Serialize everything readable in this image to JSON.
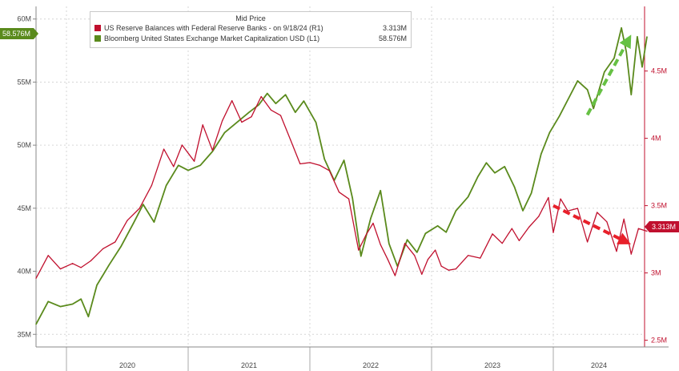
{
  "chart_data": {
    "type": "line",
    "title": "",
    "legend": {
      "title": "Mid Price",
      "placement": "top-left",
      "entries": [
        {
          "name": "US Reserve Balances with Federal Reserve Banks - on 9/18/24 (R1)",
          "last": "3.313M"
        },
        {
          "name": "Bloomberg United States Exchange Market Capitalization USD (L1)",
          "last": "58.576M"
        }
      ]
    },
    "x_axis": {
      "labels": [
        "2020",
        "2021",
        "2022",
        "2023",
        "2024"
      ],
      "range": [
        2019.75,
        2024.75
      ]
    },
    "y_left": {
      "ticks": [
        35,
        40,
        45,
        50,
        55,
        60
      ],
      "tick_labels": [
        "35M",
        "40M",
        "45M",
        "50M",
        "55M",
        "60M"
      ],
      "range": [
        34,
        61
      ]
    },
    "y_right": {
      "ticks": [
        2.5,
        3,
        3.5,
        4,
        4.5
      ],
      "tick_labels": [
        "2.5M",
        "3M",
        "3.5M",
        "4M",
        "4.5M"
      ],
      "range": [
        2.45,
        4.98
      ]
    },
    "grid": true,
    "last_value_labels": {
      "left": "58.576M",
      "right": "3.313M"
    },
    "series": [
      {
        "name": "Bloomberg United States Exchange Market Capitalization USD (L1)",
        "axis": "left",
        "color": "#5a8a1c",
        "points": [
          [
            2019.75,
            35.8
          ],
          [
            2019.85,
            37.6
          ],
          [
            2019.95,
            37.2
          ],
          [
            2020.05,
            37.4
          ],
          [
            2020.12,
            37.8
          ],
          [
            2020.18,
            36.4
          ],
          [
            2020.25,
            38.9
          ],
          [
            2020.35,
            40.5
          ],
          [
            2020.45,
            42.0
          ],
          [
            2020.55,
            43.8
          ],
          [
            2020.63,
            45.3
          ],
          [
            2020.72,
            43.9
          ],
          [
            2020.82,
            46.8
          ],
          [
            2020.92,
            48.4
          ],
          [
            2021.0,
            48.0
          ],
          [
            2021.1,
            48.4
          ],
          [
            2021.2,
            49.5
          ],
          [
            2021.3,
            51.0
          ],
          [
            2021.4,
            51.8
          ],
          [
            2021.5,
            52.6
          ],
          [
            2021.58,
            53.2
          ],
          [
            2021.65,
            54.1
          ],
          [
            2021.72,
            53.3
          ],
          [
            2021.8,
            54.0
          ],
          [
            2021.88,
            52.6
          ],
          [
            2021.95,
            53.5
          ],
          [
            2022.05,
            51.8
          ],
          [
            2022.12,
            48.9
          ],
          [
            2022.2,
            47.2
          ],
          [
            2022.28,
            48.8
          ],
          [
            2022.35,
            45.8
          ],
          [
            2022.42,
            41.2
          ],
          [
            2022.5,
            44.2
          ],
          [
            2022.58,
            46.4
          ],
          [
            2022.65,
            42.2
          ],
          [
            2022.72,
            40.4
          ],
          [
            2022.8,
            42.5
          ],
          [
            2022.88,
            41.5
          ],
          [
            2022.95,
            43.0
          ],
          [
            2023.05,
            43.6
          ],
          [
            2023.12,
            43.1
          ],
          [
            2023.2,
            44.8
          ],
          [
            2023.3,
            45.9
          ],
          [
            2023.38,
            47.5
          ],
          [
            2023.45,
            48.6
          ],
          [
            2023.52,
            47.8
          ],
          [
            2023.6,
            48.3
          ],
          [
            2023.68,
            46.7
          ],
          [
            2023.75,
            44.8
          ],
          [
            2023.82,
            46.2
          ],
          [
            2023.9,
            49.3
          ],
          [
            2023.97,
            51.0
          ],
          [
            2024.05,
            52.3
          ],
          [
            2024.12,
            53.6
          ],
          [
            2024.2,
            55.1
          ],
          [
            2024.28,
            54.4
          ],
          [
            2024.33,
            52.9
          ],
          [
            2024.42,
            55.8
          ],
          [
            2024.5,
            56.9
          ],
          [
            2024.56,
            59.3
          ],
          [
            2024.6,
            57.4
          ],
          [
            2024.64,
            54.0
          ],
          [
            2024.69,
            58.6
          ],
          [
            2024.73,
            56.2
          ],
          [
            2024.77,
            58.6
          ]
        ]
      },
      {
        "name": "US Reserve Balances with Federal Reserve Banks - on 9/18/24 (R1)",
        "axis": "right",
        "color": "#c0102e",
        "points": [
          [
            2019.75,
            2.96
          ],
          [
            2019.85,
            3.13
          ],
          [
            2019.95,
            3.03
          ],
          [
            2020.05,
            3.07
          ],
          [
            2020.12,
            3.04
          ],
          [
            2020.2,
            3.09
          ],
          [
            2020.3,
            3.18
          ],
          [
            2020.4,
            3.23
          ],
          [
            2020.5,
            3.39
          ],
          [
            2020.6,
            3.48
          ],
          [
            2020.7,
            3.65
          ],
          [
            2020.8,
            3.92
          ],
          [
            2020.88,
            3.79
          ],
          [
            2020.95,
            3.95
          ],
          [
            2021.05,
            3.83
          ],
          [
            2021.12,
            4.1
          ],
          [
            2021.2,
            3.91
          ],
          [
            2021.28,
            4.13
          ],
          [
            2021.36,
            4.28
          ],
          [
            2021.44,
            4.12
          ],
          [
            2021.52,
            4.16
          ],
          [
            2021.6,
            4.31
          ],
          [
            2021.68,
            4.21
          ],
          [
            2021.76,
            4.17
          ],
          [
            2021.84,
            3.99
          ],
          [
            2021.92,
            3.81
          ],
          [
            2022.0,
            3.82
          ],
          [
            2022.08,
            3.8
          ],
          [
            2022.16,
            3.76
          ],
          [
            2022.24,
            3.6
          ],
          [
            2022.32,
            3.55
          ],
          [
            2022.4,
            3.17
          ],
          [
            2022.46,
            3.28
          ],
          [
            2022.52,
            3.37
          ],
          [
            2022.58,
            3.21
          ],
          [
            2022.64,
            3.1
          ],
          [
            2022.7,
            2.98
          ],
          [
            2022.78,
            3.22
          ],
          [
            2022.86,
            3.13
          ],
          [
            2022.92,
            2.99
          ],
          [
            2022.97,
            3.1
          ],
          [
            2023.03,
            3.17
          ],
          [
            2023.08,
            3.05
          ],
          [
            2023.14,
            3.02
          ],
          [
            2023.2,
            3.03
          ],
          [
            2023.3,
            3.13
          ],
          [
            2023.4,
            3.11
          ],
          [
            2023.5,
            3.29
          ],
          [
            2023.58,
            3.22
          ],
          [
            2023.66,
            3.33
          ],
          [
            2023.72,
            3.24
          ],
          [
            2023.8,
            3.34
          ],
          [
            2023.88,
            3.42
          ],
          [
            2023.96,
            3.56
          ],
          [
            2024.0,
            3.3
          ],
          [
            2024.06,
            3.55
          ],
          [
            2024.12,
            3.46
          ],
          [
            2024.2,
            3.48
          ],
          [
            2024.28,
            3.23
          ],
          [
            2024.36,
            3.45
          ],
          [
            2024.44,
            3.38
          ],
          [
            2024.52,
            3.16
          ],
          [
            2024.58,
            3.4
          ],
          [
            2024.64,
            3.14
          ],
          [
            2024.7,
            3.33
          ],
          [
            2024.77,
            3.31
          ]
        ]
      }
    ],
    "annotations": [
      {
        "type": "arrow",
        "color": "#66c144",
        "style": "dashed",
        "axis": "left",
        "from": [
          2024.28,
          52.4
        ],
        "to": [
          2024.62,
          58.4
        ]
      },
      {
        "type": "arrow",
        "color": "#e8202a",
        "style": "dashed",
        "axis": "right",
        "from": [
          2024.0,
          3.5
        ],
        "to": [
          2024.6,
          3.23
        ]
      }
    ]
  }
}
